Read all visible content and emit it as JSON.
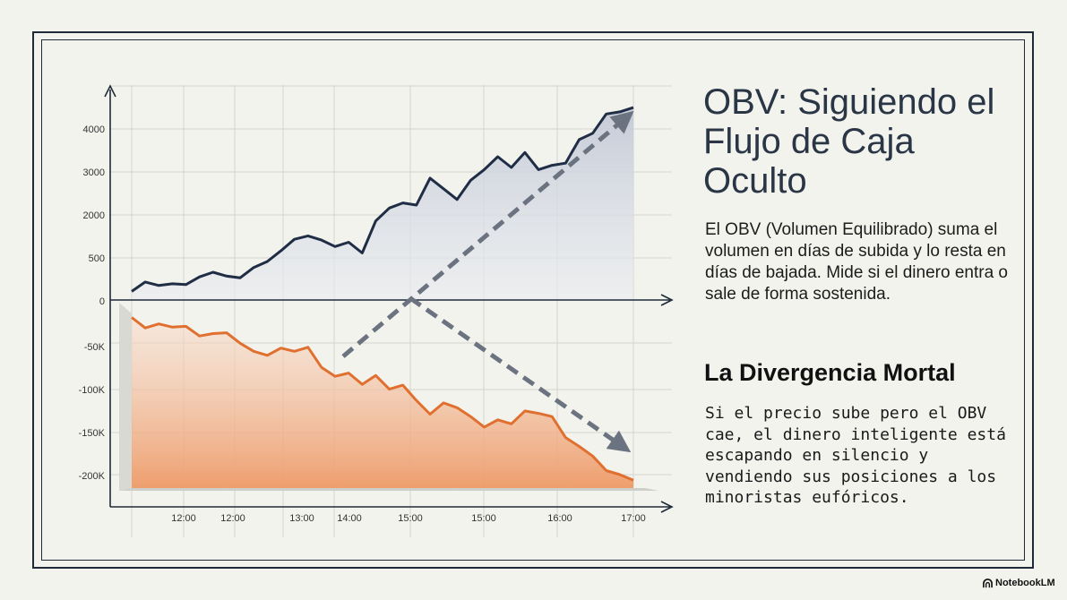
{
  "slide": {
    "title": "OBV: Siguiendo el Flujo de Caja Oculto",
    "description": "El OBV (Volumen Equilibrado) suma el volumen en días de subida y lo resta en días de bajada. Mide si el dinero entra o sale de forma sostenida.",
    "subtitle": "La Divergencia Mortal",
    "warning": "Si el precio sube pero el OBV cae, el dinero inteligente está escapando en silencio y vendiendo sus posiciones a los minoristas eufóricos.",
    "brand": "NotebookLM"
  },
  "chart_data": {
    "type": "line",
    "y_tick_labels": [
      "4000",
      "3000",
      "2000",
      "500",
      "0",
      "-50K",
      "-100K",
      "-150K",
      "-200K"
    ],
    "x_tick_labels": [
      "12:00",
      "12:00",
      "13:00",
      "14:00",
      "15:00",
      "15:00",
      "16:00",
      "17:00"
    ],
    "series": [
      {
        "color": "#1f2d45",
        "fill": "#c9ced8",
        "points": [
          [
            0,
            200
          ],
          [
            1,
            420
          ],
          [
            2,
            340
          ],
          [
            3,
            380
          ],
          [
            4,
            360
          ],
          [
            5,
            540
          ],
          [
            6,
            650
          ],
          [
            7,
            560
          ],
          [
            8,
            520
          ],
          [
            9,
            760
          ],
          [
            10,
            900
          ],
          [
            11,
            1150
          ],
          [
            12,
            1420
          ],
          [
            13,
            1500
          ],
          [
            14,
            1400
          ],
          [
            15,
            1250
          ],
          [
            16,
            1350
          ],
          [
            17,
            1100
          ],
          [
            18,
            1850
          ],
          [
            19,
            2150
          ],
          [
            20,
            2270
          ],
          [
            21,
            2220
          ],
          [
            22,
            2850
          ],
          [
            23,
            2600
          ],
          [
            24,
            2350
          ],
          [
            25,
            2800
          ],
          [
            26,
            3050
          ],
          [
            27,
            3350
          ],
          [
            28,
            3100
          ],
          [
            29,
            3450
          ],
          [
            30,
            3050
          ],
          [
            31,
            3150
          ],
          [
            32,
            3200
          ],
          [
            33,
            3750
          ],
          [
            34,
            3900
          ],
          [
            35,
            4350
          ],
          [
            36,
            4400
          ],
          [
            37,
            4500
          ]
        ]
      },
      {
        "color": "#e0702f",
        "fill": "#f0a77a",
        "points": [
          [
            0,
            -5
          ],
          [
            1,
            -18
          ],
          [
            2,
            -13
          ],
          [
            3,
            -17
          ],
          [
            4,
            -16
          ],
          [
            5,
            -28
          ],
          [
            6,
            -25
          ],
          [
            7,
            -24
          ],
          [
            8,
            -37
          ],
          [
            9,
            -47
          ],
          [
            10,
            -52
          ],
          [
            11,
            -43
          ],
          [
            12,
            -47
          ],
          [
            13,
            -42
          ],
          [
            14,
            -67
          ],
          [
            15,
            -78
          ],
          [
            16,
            -74
          ],
          [
            17,
            -88
          ],
          [
            18,
            -77
          ],
          [
            19,
            -94
          ],
          [
            20,
            -89
          ],
          [
            21,
            -108
          ],
          [
            22,
            -125
          ],
          [
            23,
            -111
          ],
          [
            24,
            -117
          ],
          [
            25,
            -128
          ],
          [
            26,
            -141
          ],
          [
            27,
            -132
          ],
          [
            28,
            -137
          ],
          [
            29,
            -121
          ],
          [
            30,
            -124
          ],
          [
            31,
            -128
          ],
          [
            32,
            -154
          ],
          [
            33,
            -165
          ],
          [
            34,
            -177
          ],
          [
            35,
            -195
          ],
          [
            36,
            -200
          ],
          [
            37,
            -207
          ]
        ]
      }
    ],
    "divergence_arrows": [
      {
        "from": [
          12,
          -47
        ],
        "to": [
          37,
          4500
        ],
        "color": "#6b7380"
      },
      {
        "from": [
          20,
          0
        ],
        "to": [
          36,
          -165
        ],
        "color": "#6b7380"
      }
    ]
  }
}
